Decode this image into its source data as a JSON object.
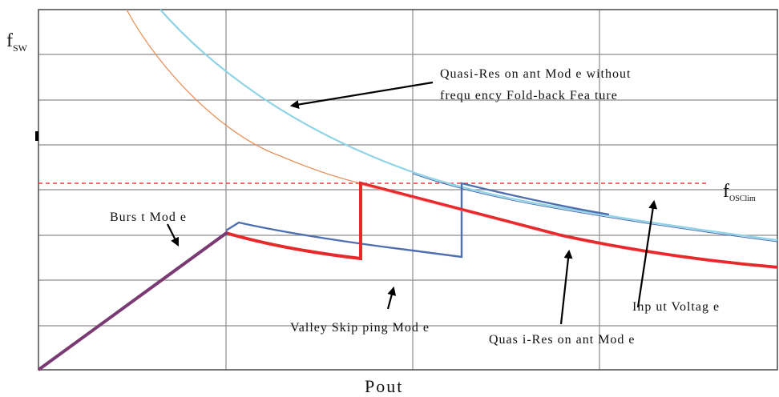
{
  "y_axis_label": {
    "main": "f",
    "sub": "SW"
  },
  "x_axis_label": "Pout",
  "limit_label": {
    "main": "f",
    "sub": "OSClim"
  },
  "annotations": {
    "qr_without_foldback_line1": "Quasi-Res on ant Mod e without",
    "qr_without_foldback_line2": "frequ ency Fold-back Fea ture",
    "burst_mode": "Burs t Mod e",
    "valley_skipping": "Valley Skip ping Mod e",
    "quasi_resonant": "Quas i-Res on ant Mod e",
    "input_voltage": "Inp ut Voltag e"
  },
  "colors": {
    "grid": "#8c8c8c",
    "frame": "#555555",
    "orange_curve": "#e8915a",
    "cyan_curve": "#8fd3e6",
    "blue_curve": "#4f6fb0",
    "red_curve": "#e8282b",
    "burst_ramp": "#7a3a74",
    "limit_line": "#e83a3a",
    "arrow": "#000000"
  }
}
